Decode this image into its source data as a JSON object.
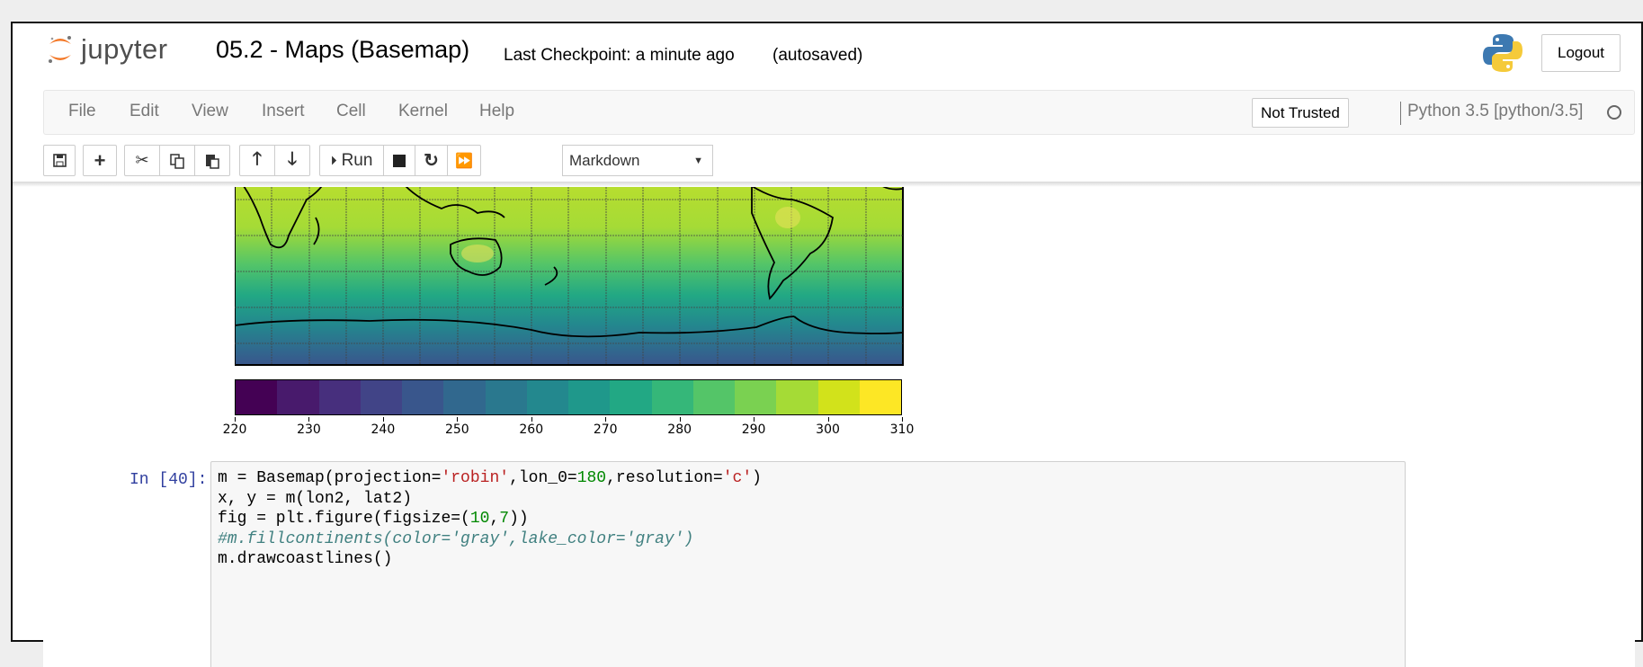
{
  "header": {
    "logo_text": "jupyter",
    "notebook_title": "05.2 - Maps (Basemap)",
    "checkpoint": "Last Checkpoint: a minute ago",
    "autosave": "(autosaved)",
    "logout_label": "Logout"
  },
  "menubar": {
    "items": [
      "File",
      "Edit",
      "View",
      "Insert",
      "Cell",
      "Kernel",
      "Help"
    ],
    "trust_label": "Not Trusted",
    "kernel_name": "Python 3.5 [python/3.5]"
  },
  "toolbar": {
    "run_label": "Run",
    "cell_type": "Markdown",
    "icons": [
      "save-icon",
      "plus-icon",
      "cut-icon",
      "copy-icon",
      "paste-icon",
      "arrow-up-icon",
      "arrow-down-icon",
      "run-icon",
      "stop-icon",
      "restart-icon",
      "fast-forward-icon",
      "keyboard-icon"
    ]
  },
  "output": {
    "colorbar_ticks": [
      "220",
      "230",
      "240",
      "250",
      "260",
      "270",
      "280",
      "290",
      "300",
      "310"
    ],
    "colorbar_min": 220,
    "colorbar_max": 310,
    "colorbar_colors": [
      "#440154",
      "#481a6c",
      "#472f7d",
      "#414487",
      "#39568c",
      "#31688e",
      "#2a788e",
      "#23888e",
      "#1f988b",
      "#22a884",
      "#35b779",
      "#54c568",
      "#7ad151",
      "#a5db36",
      "#d2e21b",
      "#fde725"
    ]
  },
  "cell": {
    "prompt": "In [40]:",
    "code": [
      "m = Basemap(projection='robin',lon_0=180,resolution='c')",
      "x, y = m(lon2, lat2)",
      "fig = plt.figure(figsize=(10,7))",
      "#m.fillcontinents(color='gray',lake_color='gray')",
      "m.drawcoastlines()"
    ],
    "code_tokens": {
      "l1a": "m = Basemap(projection=",
      "l1b": "'robin'",
      "l1c": ",lon_0=",
      "l1d": "180",
      "l1e": ",resolution=",
      "l1f": "'c'",
      "l1g": ")",
      "l3a": "fig = plt.figure(figsize=(",
      "l3b": "10",
      "l3c": ",",
      "l3d": "7",
      "l3e": "))"
    }
  }
}
